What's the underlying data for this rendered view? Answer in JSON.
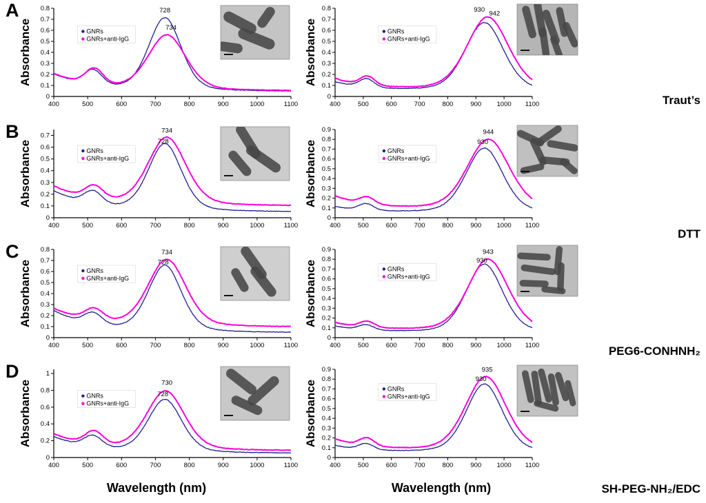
{
  "figure": {
    "background": "#ffffff",
    "ylabel": "Absorbance",
    "xlabel": "Wavelength (nm)",
    "xticks": [
      400,
      500,
      600,
      700,
      800,
      900,
      1000,
      1100
    ],
    "colors": {
      "gnrs": "#1f1c8f",
      "anti": "#ff00dc"
    },
    "legend_labels": [
      "GNRs",
      "GNRs+anti-IgG"
    ],
    "rows": [
      {
        "letter": "A",
        "side_label": "Traut’s"
      },
      {
        "letter": "B",
        "side_label": "DTT"
      },
      {
        "letter": "C",
        "side_label": "PEG6-CONHNH₂"
      },
      {
        "letter": "D",
        "side_label": "SH-PEG-NH₂/EDC"
      }
    ]
  },
  "chart_data": [
    {
      "id": "A-left",
      "row": "A",
      "col": "left",
      "type": "line",
      "xlabel": "Wavelength (nm)",
      "ylabel": "Absorbance",
      "xlim": [
        400,
        1100
      ],
      "ylim": [
        0,
        0.8
      ],
      "yticks": [
        0,
        0.1,
        0.2,
        0.3,
        0.4,
        0.5,
        0.6,
        0.7,
        0.8
      ],
      "legend": {
        "fx": 0.1,
        "fy": 0.2
      },
      "series": [
        {
          "name": "GNRs",
          "color_key": "gnrs",
          "peak_nm": 728,
          "peak_abs": 0.72,
          "params": {
            "offset": 0.045,
            "base": 0.155,
            "t_amp": 0.13,
            "t_center": 516,
            "l_amp": 0.66,
            "l_center": 728,
            "l_sigma": 48
          }
        },
        {
          "name": "GNRs+anti-IgG",
          "color_key": "anti",
          "peak_nm": 734,
          "peak_abs": 0.57,
          "params": {
            "offset": 0.05,
            "base": 0.155,
            "t_amp": 0.14,
            "t_center": 520,
            "l_amp": 0.5,
            "l_center": 734,
            "l_sigma": 56
          }
        }
      ],
      "annotations": [
        {
          "text": "728",
          "x": 728,
          "y": 0.762
        },
        {
          "text": "734",
          "x": 746,
          "y": 0.605
        }
      ],
      "inset": {
        "bg": "#c4c4c4",
        "rods": [
          [
            28,
            32,
            52,
            20,
            28
          ],
          [
            66,
            22,
            34,
            18,
            -55
          ],
          [
            52,
            62,
            56,
            20,
            22
          ],
          [
            14,
            78,
            36,
            18,
            8
          ]
        ]
      }
    },
    {
      "id": "A-right",
      "row": "A",
      "col": "right",
      "type": "line",
      "xlabel": "Wavelength (nm)",
      "ylabel": "Absorbance",
      "xlim": [
        400,
        1100
      ],
      "ylim": [
        0,
        0.8
      ],
      "yticks": [
        0,
        0.1,
        0.2,
        0.3,
        0.4,
        0.5,
        0.6,
        0.7,
        0.8
      ],
      "legend": {
        "fx": 0.22,
        "fy": 0.2
      },
      "series": [
        {
          "name": "GNRs",
          "color_key": "gnrs",
          "peak_nm": 930,
          "peak_abs": 0.67,
          "params": {
            "offset": 0.05,
            "base": 0.08,
            "t_amp": 0.075,
            "t_center": 512,
            "l_amp": 0.62,
            "l_center": 930,
            "l_sigma": 68
          }
        },
        {
          "name": "GNRs+anti-IgG",
          "color_key": "anti",
          "peak_nm": 942,
          "peak_abs": 0.72,
          "params": {
            "offset": 0.06,
            "base": 0.1,
            "t_amp": 0.08,
            "t_center": 515,
            "l_amp": 0.66,
            "l_center": 942,
            "l_sigma": 74
          }
        }
      ],
      "annotations": [
        {
          "text": "930",
          "x": 912,
          "y": 0.77
        },
        {
          "text": "942",
          "x": 966,
          "y": 0.735
        }
      ],
      "inset": {
        "bg": "#b5b5b5",
        "rods": [
          [
            20,
            35,
            55,
            15,
            75
          ],
          [
            38,
            30,
            60,
            15,
            80
          ],
          [
            56,
            45,
            60,
            15,
            70
          ],
          [
            74,
            35,
            50,
            14,
            78
          ],
          [
            88,
            60,
            45,
            14,
            65
          ],
          [
            45,
            75,
            50,
            14,
            82
          ],
          [
            65,
            85,
            40,
            13,
            70
          ]
        ]
      }
    },
    {
      "id": "B-left",
      "row": "B",
      "col": "left",
      "type": "line",
      "xlabel": "Wavelength (nm)",
      "ylabel": "Absorbance",
      "xlim": [
        400,
        1100
      ],
      "ylim": [
        0,
        0.75
      ],
      "yticks": [
        0,
        0.1,
        0.2,
        0.3,
        0.4,
        0.5,
        0.6,
        0.7
      ],
      "legend": {
        "fx": 0.1,
        "fy": 0.18
      },
      "series": [
        {
          "name": "GNRs",
          "color_key": "gnrs",
          "peak_nm": 728,
          "peak_abs": 0.62,
          "params": {
            "offset": 0.05,
            "base": 0.175,
            "t_amp": 0.105,
            "t_center": 516,
            "l_amp": 0.57,
            "l_center": 728,
            "l_sigma": 49
          }
        },
        {
          "name": "GNRs+anti-IgG",
          "color_key": "anti",
          "peak_nm": 734,
          "peak_abs": 0.68,
          "params": {
            "offset": 0.1,
            "base": 0.165,
            "t_amp": 0.105,
            "t_center": 519,
            "l_amp": 0.575,
            "l_center": 734,
            "l_sigma": 56
          }
        }
      ],
      "annotations": [
        {
          "text": "734",
          "x": 734,
          "y": 0.723
        },
        {
          "text": "728",
          "x": 723,
          "y": 0.633
        }
      ],
      "inset": {
        "bg": "#cccccc",
        "rods": [
          [
            40,
            28,
            55,
            18,
            58
          ],
          [
            62,
            60,
            58,
            18,
            35
          ],
          [
            28,
            68,
            44,
            17,
            50
          ]
        ]
      }
    },
    {
      "id": "B-right",
      "row": "B",
      "col": "right",
      "type": "line",
      "xlabel": "Wavelength (nm)",
      "ylabel": "Absorbance",
      "xlim": [
        400,
        1100
      ],
      "ylim": [
        0,
        0.9
      ],
      "yticks": [
        0,
        0.1,
        0.2,
        0.3,
        0.4,
        0.5,
        0.6,
        0.7,
        0.8,
        0.9
      ],
      "legend": {
        "fx": 0.22,
        "fy": 0.18
      },
      "series": [
        {
          "name": "GNRs",
          "color_key": "gnrs",
          "peak_nm": 930,
          "peak_abs": 0.71,
          "params": {
            "offset": 0.05,
            "base": 0.06,
            "t_amp": 0.065,
            "t_center": 510,
            "l_amp": 0.66,
            "l_center": 930,
            "l_sigma": 66
          }
        },
        {
          "name": "GNRs+anti-IgG",
          "color_key": "anti",
          "peak_nm": 944,
          "peak_abs": 0.8,
          "params": {
            "offset": 0.085,
            "base": 0.135,
            "t_amp": 0.07,
            "t_center": 514,
            "l_amp": 0.715,
            "l_center": 944,
            "l_sigma": 75
          }
        }
      ],
      "annotations": [
        {
          "text": "944",
          "x": 944,
          "y": 0.853
        },
        {
          "text": "930",
          "x": 924,
          "y": 0.752
        }
      ],
      "inset": {
        "bg": "#c0c0c0",
        "rods": [
          [
            22,
            25,
            48,
            14,
            25
          ],
          [
            52,
            20,
            50,
            14,
            -35
          ],
          [
            75,
            40,
            52,
            14,
            10
          ],
          [
            35,
            52,
            48,
            14,
            65
          ],
          [
            62,
            70,
            50,
            14,
            5
          ],
          [
            25,
            85,
            40,
            13,
            -12
          ],
          [
            85,
            80,
            35,
            13,
            40
          ]
        ]
      }
    },
    {
      "id": "C-left",
      "row": "C",
      "col": "left",
      "type": "line",
      "xlabel": "Wavelength (nm)",
      "ylabel": "Absorbance",
      "xlim": [
        400,
        1100
      ],
      "ylim": [
        0,
        0.8
      ],
      "yticks": [
        0,
        0.1,
        0.2,
        0.3,
        0.4,
        0.5,
        0.6,
        0.7,
        0.8
      ],
      "legend": {
        "fx": 0.1,
        "fy": 0.18
      },
      "series": [
        {
          "name": "GNRs",
          "color_key": "gnrs",
          "peak_nm": 728,
          "peak_abs": 0.65,
          "params": {
            "offset": 0.045,
            "base": 0.195,
            "t_amp": 0.1,
            "t_center": 516,
            "l_amp": 0.6,
            "l_center": 728,
            "l_sigma": 49
          }
        },
        {
          "name": "GNRs+anti-IgG",
          "color_key": "anti",
          "peak_nm": 734,
          "peak_abs": 0.7,
          "params": {
            "offset": 0.095,
            "base": 0.165,
            "t_amp": 0.1,
            "t_center": 519,
            "l_amp": 0.605,
            "l_center": 734,
            "l_sigma": 56
          }
        }
      ],
      "annotations": [
        {
          "text": "734",
          "x": 734,
          "y": 0.757
        },
        {
          "text": "728",
          "x": 723,
          "y": 0.667
        }
      ],
      "inset": {
        "bg": "#cfcfcf",
        "rods": [
          [
            48,
            30,
            55,
            18,
            55
          ],
          [
            62,
            65,
            52,
            18,
            52
          ],
          [
            28,
            62,
            38,
            16,
            60
          ]
        ]
      }
    },
    {
      "id": "C-right",
      "row": "C",
      "col": "right",
      "type": "line",
      "xlabel": "Wavelength (nm)",
      "ylabel": "Absorbance",
      "xlim": [
        400,
        1100
      ],
      "ylim": [
        0,
        0.9
      ],
      "yticks": [
        0,
        0.1,
        0.2,
        0.3,
        0.4,
        0.5,
        0.6,
        0.7,
        0.8,
        0.9
      ],
      "legend": {
        "fx": 0.22,
        "fy": 0.16
      },
      "series": [
        {
          "name": "GNRs",
          "color_key": "gnrs",
          "peak_nm": 930,
          "peak_abs": 0.75,
          "params": {
            "offset": 0.05,
            "base": 0.065,
            "t_amp": 0.05,
            "t_center": 510,
            "l_amp": 0.7,
            "l_center": 930,
            "l_sigma": 65
          }
        },
        {
          "name": "GNRs+anti-IgG",
          "color_key": "anti",
          "peak_nm": 943,
          "peak_abs": 0.8,
          "params": {
            "offset": 0.07,
            "base": 0.08,
            "t_amp": 0.06,
            "t_center": 513,
            "l_amp": 0.73,
            "l_center": 943,
            "l_sigma": 72
          }
        }
      ],
      "annotations": [
        {
          "text": "943",
          "x": 943,
          "y": 0.853
        },
        {
          "text": "930",
          "x": 921,
          "y": 0.765
        }
      ],
      "inset": {
        "bg": "#bdbdbd",
        "rods": [
          [
            28,
            22,
            55,
            13,
            3
          ],
          [
            68,
            30,
            48,
            13,
            95
          ],
          [
            35,
            48,
            58,
            13,
            8
          ],
          [
            72,
            62,
            48,
            13,
            92
          ],
          [
            28,
            75,
            48,
            13,
            2
          ],
          [
            60,
            88,
            40,
            12,
            6
          ]
        ]
      }
    },
    {
      "id": "D-left",
      "row": "D",
      "col": "left",
      "type": "line",
      "xlabel": "Wavelength (nm)",
      "ylabel": "Absorbance",
      "xlim": [
        400,
        1100
      ],
      "ylim": [
        0,
        1.05
      ],
      "yticks": [
        0,
        0.2,
        0.4,
        0.6,
        0.8,
        1
      ],
      "legend": {
        "fx": 0.1,
        "fy": 0.24
      },
      "series": [
        {
          "name": "GNRs",
          "color_key": "gnrs",
          "peak_nm": 728,
          "peak_abs": 0.68,
          "params": {
            "offset": 0.05,
            "base": 0.195,
            "t_amp": 0.13,
            "t_center": 516,
            "l_amp": 0.63,
            "l_center": 728,
            "l_sigma": 50
          }
        },
        {
          "name": "GNRs+anti-IgG",
          "color_key": "anti",
          "peak_nm": 730,
          "peak_abs": 0.78,
          "params": {
            "offset": 0.08,
            "base": 0.195,
            "t_amp": 0.15,
            "t_center": 519,
            "l_amp": 0.7,
            "l_center": 730,
            "l_sigma": 56
          }
        }
      ],
      "annotations": [
        {
          "text": "730",
          "x": 734,
          "y": 0.865
        },
        {
          "text": "728",
          "x": 722,
          "y": 0.73
        }
      ],
      "inset": {
        "bg": "#c8c8c8",
        "rods": [
          [
            30,
            28,
            52,
            18,
            38
          ],
          [
            62,
            45,
            56,
            18,
            -42
          ],
          [
            38,
            72,
            48,
            17,
            25
          ]
        ]
      }
    },
    {
      "id": "D-right",
      "row": "D",
      "col": "right",
      "type": "line",
      "xlabel": "Wavelength (nm)",
      "ylabel": "Absorbance",
      "xlim": [
        400,
        1100
      ],
      "ylim": [
        0,
        0.9
      ],
      "yticks": [
        0,
        0.1,
        0.2,
        0.3,
        0.4,
        0.5,
        0.6,
        0.7,
        0.8,
        0.9
      ],
      "legend": {
        "fx": 0.22,
        "fy": 0.16
      },
      "series": [
        {
          "name": "GNRs",
          "color_key": "gnrs",
          "peak_nm": 930,
          "peak_abs": 0.75,
          "params": {
            "offset": 0.05,
            "base": 0.07,
            "t_amp": 0.06,
            "t_center": 510,
            "l_amp": 0.7,
            "l_center": 930,
            "l_sigma": 65
          }
        },
        {
          "name": "GNRs+anti-IgG",
          "color_key": "anti",
          "peak_nm": 935,
          "peak_abs": 0.82,
          "params": {
            "offset": 0.07,
            "base": 0.115,
            "t_amp": 0.08,
            "t_center": 513,
            "l_amp": 0.755,
            "l_center": 935,
            "l_sigma": 72
          }
        }
      ],
      "annotations": [
        {
          "text": "935",
          "x": 940,
          "y": 0.877
        },
        {
          "text": "930",
          "x": 918,
          "y": 0.782
        }
      ],
      "inset": {
        "bg": "#c2c2c2",
        "rods": [
          [
            18,
            42,
            55,
            13,
            78
          ],
          [
            32,
            45,
            58,
            13,
            82
          ],
          [
            46,
            40,
            58,
            13,
            75
          ],
          [
            60,
            48,
            54,
            13,
            80
          ],
          [
            74,
            42,
            50,
            13,
            72
          ],
          [
            88,
            55,
            44,
            12,
            76
          ],
          [
            48,
            80,
            42,
            12,
            15
          ]
        ]
      }
    }
  ]
}
